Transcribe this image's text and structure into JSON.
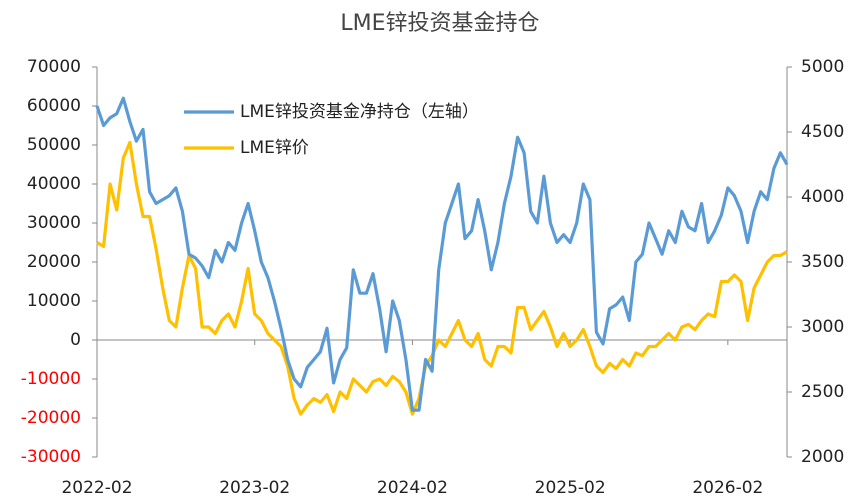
{
  "chart_data": {
    "type": "line",
    "title": "LME锌投资基金持仓",
    "categories": [
      "2022-02",
      null,
      null,
      null,
      null,
      null,
      null,
      null,
      null,
      null,
      null,
      null,
      null,
      null,
      null,
      null,
      null,
      null,
      null,
      null,
      null,
      null,
      null,
      null,
      "2023-02",
      null,
      null,
      null,
      null,
      null,
      null,
      null,
      null,
      null,
      null,
      null,
      null,
      null,
      null,
      null,
      null,
      null,
      null,
      null,
      null,
      null,
      null,
      null,
      "2024-02",
      null,
      null,
      null,
      null,
      null,
      null,
      null,
      null,
      null,
      null,
      null,
      null,
      null,
      null,
      null,
      null,
      null,
      null,
      null,
      null,
      null,
      null,
      null,
      "2025-02",
      null,
      null,
      null,
      null,
      null,
      null,
      null,
      null,
      null,
      null,
      null,
      null,
      null,
      null,
      null,
      null,
      null,
      null,
      null,
      null,
      null,
      null,
      null,
      "2026-02",
      null,
      null,
      null,
      null,
      null,
      null,
      null,
      null,
      null
    ],
    "series": [
      {
        "name": "LME锌投资基金净持仓（左轴）",
        "color": "#5b9bd5",
        "axis": "y",
        "values": [
          60000,
          55000,
          57000,
          58000,
          62000,
          56000,
          51000,
          54000,
          38000,
          35000,
          36000,
          37000,
          39000,
          33000,
          22000,
          21000,
          19000,
          16000,
          23000,
          20000,
          25000,
          23000,
          30000,
          35000,
          28000,
          20000,
          16000,
          10000,
          3000,
          -5000,
          -10000,
          -12000,
          -7000,
          -5000,
          -3000,
          3000,
          -11000,
          -5000,
          -2000,
          18000,
          12000,
          12000,
          17000,
          8000,
          -3000,
          10000,
          5000,
          -5000,
          -18000,
          -18000,
          -5000,
          -8000,
          18000,
          30000,
          35000,
          40000,
          26000,
          28000,
          36000,
          28000,
          18000,
          25000,
          35000,
          42000,
          52000,
          48000,
          33000,
          30000,
          42000,
          30000,
          25000,
          27000,
          25000,
          30000,
          40000,
          36000,
          2000,
          -1000,
          8000,
          9000,
          11000,
          5000,
          20000,
          22000,
          30000,
          26000,
          22000,
          28000,
          25000,
          33000,
          29000,
          28000,
          35000,
          25000,
          28000,
          32000,
          39000,
          37000,
          33000,
          25000,
          33000,
          38000,
          36000,
          44000,
          48000,
          45000
        ]
      },
      {
        "name": "LME锌价",
        "color": "#ffc000",
        "axis": "y2",
        "values": [
          3650,
          3620,
          4100,
          3900,
          4300,
          4420,
          4100,
          3850,
          3850,
          3600,
          3300,
          3050,
          3000,
          3300,
          3550,
          3450,
          3000,
          3000,
          2950,
          3050,
          3100,
          3000,
          3200,
          3450,
          3100,
          3050,
          2950,
          2900,
          2850,
          2700,
          2450,
          2330,
          2400,
          2450,
          2420,
          2480,
          2350,
          2500,
          2450,
          2600,
          2550,
          2500,
          2580,
          2600,
          2550,
          2620,
          2580,
          2500,
          2330,
          2450,
          2700,
          2780,
          2900,
          2850,
          2950,
          3050,
          2900,
          2850,
          2950,
          2750,
          2700,
          2850,
          2850,
          2800,
          3150,
          3150,
          2980,
          3050,
          3120,
          3000,
          2850,
          2950,
          2850,
          2900,
          2980,
          2850,
          2700,
          2650,
          2720,
          2680,
          2750,
          2700,
          2800,
          2780,
          2850,
          2850,
          2900,
          2950,
          2900,
          3000,
          3020,
          2980,
          3050,
          3100,
          3080,
          3350,
          3350,
          3400,
          3350,
          3050,
          3300,
          3400,
          3500,
          3550,
          3550,
          3580
        ]
      }
    ],
    "ylim": [
      -30000,
      70000
    ],
    "yticks": [
      -30000,
      -20000,
      -10000,
      0,
      10000,
      20000,
      30000,
      40000,
      50000,
      60000,
      70000
    ],
    "y2lim": [
      2000,
      5000
    ],
    "y2ticks": [
      2000,
      2500,
      3000,
      3500,
      4000,
      4500,
      5000
    ],
    "negative_tick_color": "#ff0000",
    "legend": "upper left",
    "grid": false
  }
}
